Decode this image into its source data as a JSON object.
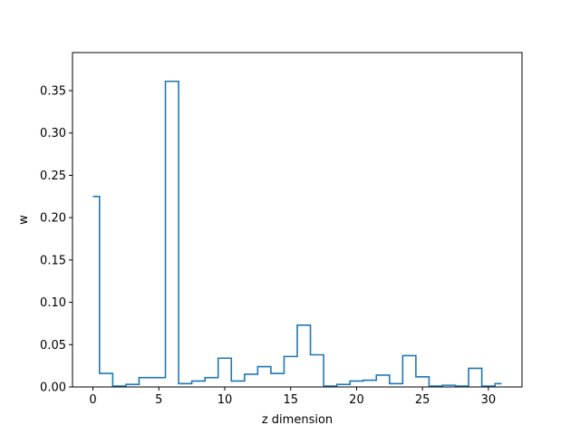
{
  "chart_data": {
    "type": "line",
    "style": "step-mid",
    "xlabel": "z dimension",
    "ylabel": "w",
    "xlim": [
      -1.55,
      32.55
    ],
    "ylim": [
      0,
      0.395
    ],
    "grid": false,
    "color": "#1f77b4",
    "x_ticks": [
      0,
      5,
      10,
      15,
      20,
      25,
      30
    ],
    "y_ticks": [
      0.0,
      0.05,
      0.1,
      0.15,
      0.2,
      0.25,
      0.3,
      0.35
    ],
    "x_tick_labels": [
      "0",
      "5",
      "10",
      "15",
      "20",
      "25",
      "30"
    ],
    "y_tick_labels": [
      "0.00",
      "0.05",
      "0.10",
      "0.15",
      "0.20",
      "0.25",
      "0.30",
      "0.35"
    ],
    "x": [
      0,
      1,
      2,
      3,
      4,
      5,
      6,
      7,
      8,
      9,
      10,
      11,
      12,
      13,
      14,
      15,
      16,
      17,
      18,
      19,
      20,
      21,
      22,
      23,
      24,
      25,
      26,
      27,
      28,
      29,
      30,
      31
    ],
    "values": [
      0.225,
      0.016,
      0.001,
      0.003,
      0.011,
      0.011,
      0.361,
      0.004,
      0.007,
      0.011,
      0.034,
      0.007,
      0.015,
      0.024,
      0.016,
      0.036,
      0.073,
      0.038,
      0.001,
      0.003,
      0.007,
      0.008,
      0.014,
      0.004,
      0.037,
      0.012,
      0.001,
      0.002,
      0.001,
      0.022,
      0.001,
      0.004
    ]
  }
}
